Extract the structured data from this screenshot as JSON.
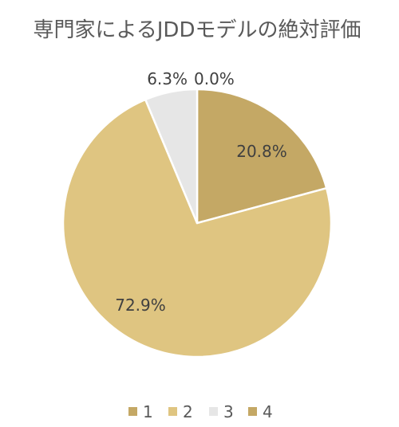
{
  "chart_data": {
    "type": "pie",
    "title": "専門家によるJDDモデルの絶対評価",
    "categories": [
      "1",
      "2",
      "3",
      "4"
    ],
    "values": [
      20.8,
      72.9,
      6.3,
      0.0
    ],
    "data_labels": [
      "20.8%",
      "72.9%",
      "6.3%",
      "0.0%"
    ],
    "colors": [
      "#c4a865",
      "#dfc581",
      "#e6e6e6",
      "#c4a865"
    ],
    "legend_position": "bottom"
  }
}
